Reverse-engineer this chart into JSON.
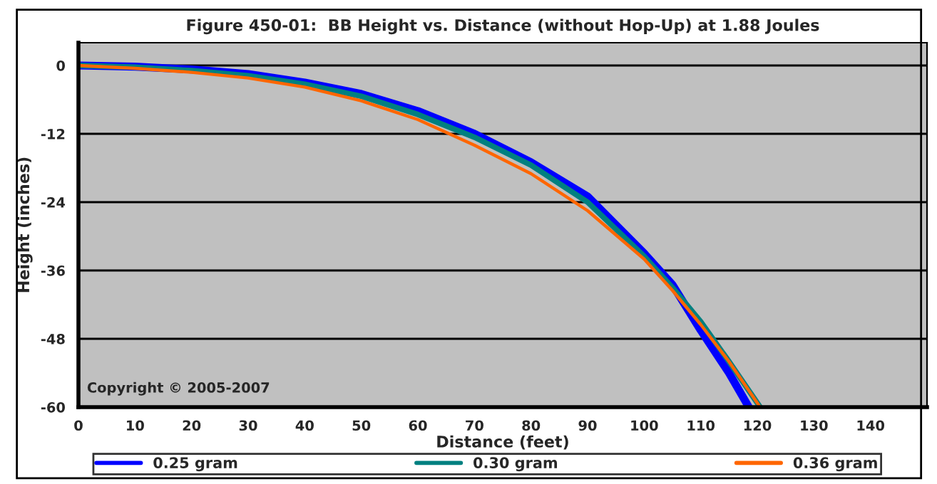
{
  "chart_data": {
    "type": "line",
    "title": "Figure 450-01:  BB Height vs. Distance (without Hop-Up) at 1.88 Joules",
    "xlabel": "Distance (feet)",
    "ylabel": "Height (inches)",
    "xlim": [
      0,
      150
    ],
    "xticks": [
      0,
      10,
      20,
      30,
      40,
      50,
      60,
      70,
      80,
      90,
      100,
      110,
      120,
      130,
      140
    ],
    "ylim": [
      -60,
      4
    ],
    "yticks": [
      0,
      -12,
      -24,
      -36,
      -48,
      -60
    ],
    "grid": "y",
    "legend": "bottom",
    "marker": "none",
    "line_style": "solid",
    "annotations": [
      "Copyright © 2005-2007"
    ],
    "series": [
      {
        "name": "0.25 gram",
        "color": "#0000ff",
        "x": [
          0,
          10,
          20,
          30,
          40,
          50,
          60,
          70,
          80,
          90,
          100,
          105,
          110,
          115,
          118.5
        ],
        "values": [
          0,
          -0.2,
          -0.7,
          -1.5,
          -3,
          -5,
          -8,
          -12,
          -17,
          -23,
          -33,
          -38.5,
          -46.5,
          -54,
          -60
        ]
      },
      {
        "name": "0.30 gram",
        "color": "#008080",
        "x": [
          0,
          10,
          20,
          30,
          40,
          50,
          60,
          70,
          80,
          90,
          100,
          105,
          110,
          115,
          120.5
        ],
        "values": [
          0,
          -0.3,
          -0.9,
          -1.8,
          -3.3,
          -5.4,
          -8.6,
          -12.6,
          -17.5,
          -24,
          -33.5,
          -39,
          -45,
          -52,
          -60
        ]
      },
      {
        "name": "0.36 gram",
        "color": "#ff6600",
        "x": [
          0,
          10,
          20,
          30,
          40,
          50,
          60,
          70,
          80,
          90,
          100,
          105,
          110,
          115,
          120.5
        ],
        "values": [
          0,
          -0.5,
          -1.2,
          -2.2,
          -3.8,
          -6.2,
          -9.5,
          -14,
          -19,
          -25.5,
          -34,
          -39.5,
          -45.5,
          -52,
          -60
        ]
      }
    ]
  }
}
